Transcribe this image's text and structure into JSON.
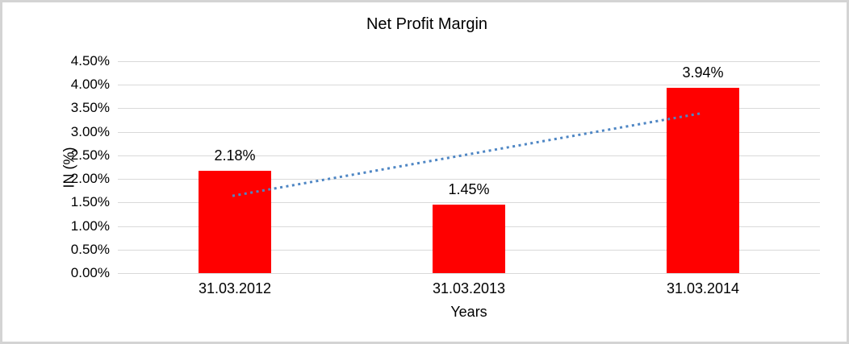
{
  "chart_data": {
    "type": "bar",
    "title": "Net Profit Margin",
    "xlabel": "Years",
    "ylabel": "IN (%)",
    "categories": [
      "31.03.2012",
      "31.03.2013",
      "31.03.2014"
    ],
    "values": [
      2.18,
      1.45,
      3.94
    ],
    "data_labels": [
      "2.18%",
      "1.45%",
      "3.94%"
    ],
    "ylim": [
      0,
      4.5
    ],
    "ytick_step": 0.5,
    "ytick_labels": [
      "0.00%",
      "0.50%",
      "1.00%",
      "1.50%",
      "2.00%",
      "2.50%",
      "3.00%",
      "3.50%",
      "4.00%",
      "4.50%"
    ],
    "grid": true,
    "legend": false,
    "bar_color": "#FF0000",
    "gridline_color": "#d9d9d9",
    "text_color": "#000000",
    "trendline": {
      "type": "linear",
      "style": "dotted",
      "color": "#4E86C4",
      "start_value": 1.64,
      "end_value": 3.4
    }
  }
}
